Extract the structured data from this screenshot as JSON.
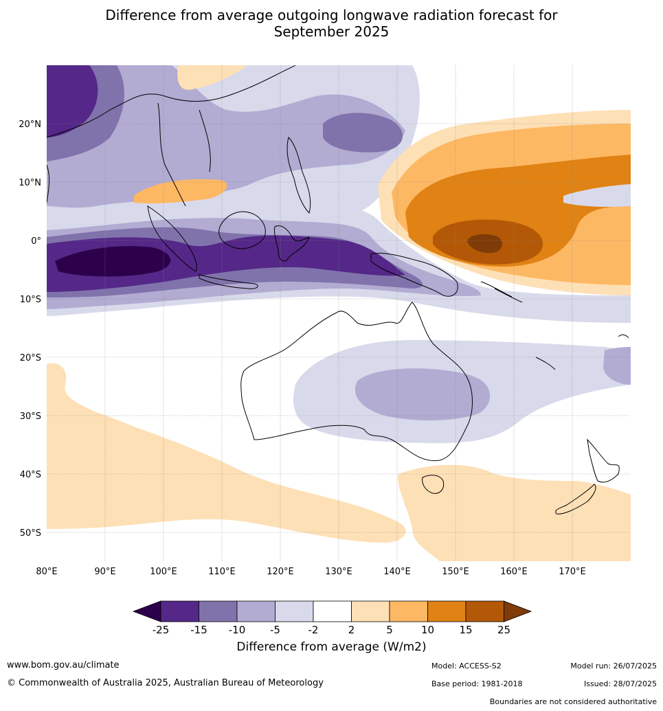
{
  "title_line1": "Difference from average outgoing longwave radiation forecast for",
  "title_line2": "September 2025",
  "lon_ticks": [
    "80°E",
    "90°E",
    "100°E",
    "110°E",
    "120°E",
    "130°E",
    "140°E",
    "150°E",
    "160°E",
    "170°E"
  ],
  "lat_ticks": [
    "20°N",
    "10°N",
    "0°",
    "10°S",
    "20°S",
    "30°S",
    "40°S",
    "50°S"
  ],
  "colorbar": {
    "title": "Difference from average (W/m2)",
    "labels": [
      "-25",
      "-15",
      "-10",
      "-5",
      "-2",
      "2",
      "5",
      "10",
      "15",
      "25"
    ],
    "colors": {
      "below": "#2d004b",
      "c1": "#542788",
      "c2": "#8073ac",
      "c3": "#b2abd2",
      "c4": "#d8daeb",
      "c5": "#ffffff",
      "c6": "#fee0b6",
      "c7": "#fdb863",
      "c8": "#e08214",
      "c9": "#b35806",
      "above": "#7f3b08"
    }
  },
  "footer": {
    "website": "www.bom.gov.au/climate",
    "copyright": "© Commonwealth of Australia 2025, Australian Bureau of Meteorology",
    "model": "Model: ACCESS-S2",
    "base_period": "Base period: 1981-2018",
    "model_run": "Model run: 26/07/2025",
    "issued": "Issued: 28/07/2025",
    "disclaimer": "Boundaries are not considered authoritative"
  }
}
